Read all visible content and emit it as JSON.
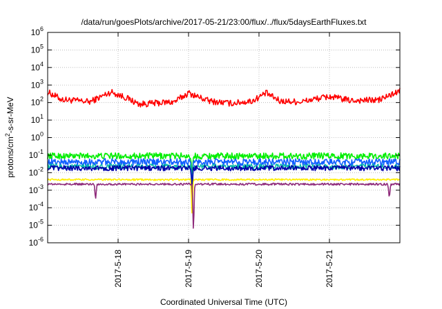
{
  "chart_data": {
    "type": "line",
    "title": "/data/run/goesPlots/archive/2017-05-21/23:00/flux/../flux/5daysEarthFluxes.txt",
    "xlabel": "Coordinated Universal Time (UTC)",
    "ylabel_main": "protons/cm",
    "ylabel_sup": "2",
    "ylabel_rest": "-s-sr-MeV",
    "y_scale": "log",
    "ylim": [
      1e-06,
      1000000.0
    ],
    "xlim_days": [
      0,
      5
    ],
    "grid": true,
    "x_tick_labels": [
      "2017-5-18",
      "2017-5-19",
      "2017-5-20",
      "2017-5-21"
    ],
    "y_tick_base": "10",
    "y_tick_exponents": [
      "-6",
      "-5",
      "-4",
      "-3",
      "-2",
      "-1",
      "0",
      "1",
      "2",
      "3",
      "4",
      "5",
      "6"
    ],
    "series": [
      {
        "color": "#ff0000",
        "typical": 150,
        "width": 1.6,
        "jitter": 0.18,
        "trend": [
          [
            0.0,
            400
          ],
          [
            0.2,
            150
          ],
          [
            0.6,
            110
          ],
          [
            0.9,
            400
          ],
          [
            1.1,
            200
          ],
          [
            1.3,
            80
          ],
          [
            1.8,
            110
          ],
          [
            2.0,
            350
          ],
          [
            2.15,
            200
          ],
          [
            2.3,
            120
          ],
          [
            2.6,
            90
          ],
          [
            2.9,
            120
          ],
          [
            3.1,
            350
          ],
          [
            3.3,
            120
          ],
          [
            3.6,
            110
          ],
          [
            3.8,
            160
          ],
          [
            4.0,
            220
          ],
          [
            4.3,
            130
          ],
          [
            4.7,
            140
          ],
          [
            4.85,
            250
          ],
          [
            5.0,
            450
          ]
        ],
        "dips": []
      },
      {
        "color": "#00ee00",
        "typical": 0.09,
        "width": 1.6,
        "jitter": 0.18,
        "dips": [
          [
            2.05,
            0.004
          ]
        ]
      },
      {
        "color": "#1060ff",
        "typical": 0.04,
        "width": 1.6,
        "jitter": 0.2,
        "dips": [
          [
            2.05,
            0.002
          ]
        ]
      },
      {
        "color": "#00b8a8",
        "typical": 0.022,
        "width": 1.4,
        "jitter": 0.15,
        "dips": [
          [
            2.05,
            0.001
          ]
        ]
      },
      {
        "color": "#0000aa",
        "typical": 0.018,
        "width": 1.6,
        "jitter": 0.15,
        "dips": [
          [
            2.05,
            0.0008
          ]
        ]
      },
      {
        "color": "#ffee00",
        "typical": 0.004,
        "width": 1.6,
        "jitter": 0.05,
        "dips": [
          [
            2.05,
            3e-05
          ]
        ]
      },
      {
        "color": "#8e2a7a",
        "typical": 0.0022,
        "width": 1.6,
        "jitter": 0.06,
        "dips": [
          [
            0.68,
            0.00025
          ],
          [
            2.07,
            2.5e-06
          ],
          [
            4.85,
            0.0003
          ]
        ]
      }
    ]
  }
}
